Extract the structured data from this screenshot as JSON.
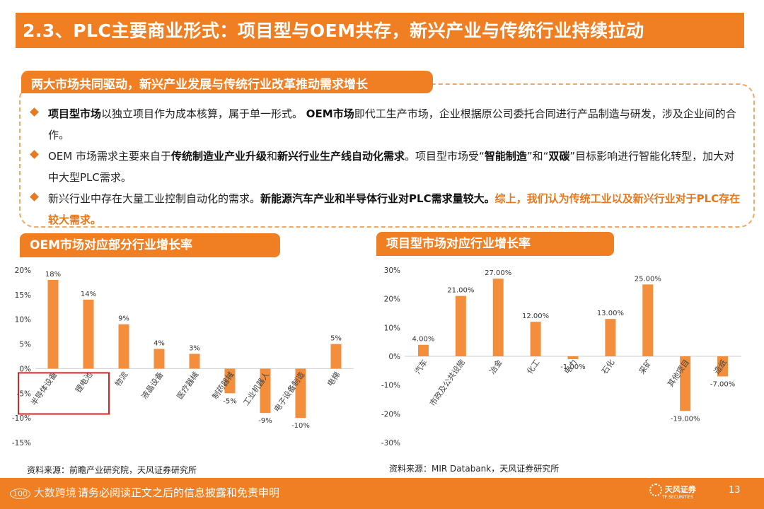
{
  "title": "2.3、PLC主要商业形式：项目型与OEM共存，新兴产业与传统行业持续拉动",
  "subtitle": "两大市场共同驱动，新兴产业发展与传统行业改革推动需求增长",
  "bullets": {
    "b1": {
      "s1": "项目型市场",
      "s2": "以独立项目作为成本核算，属于单一形式。 ",
      "s3": "OEM市场",
      "s4": "即代工生产市场，企业根据原公司委托合同进行产品制造与研发，涉及企业间的合作。"
    },
    "b2": {
      "s1": "OEM 市场需求主要来自于",
      "s2": "传统制造业产业升级",
      "s3": "和",
      "s4": "新兴行业生产线自动化需求",
      "s5": "。项目型市场受“",
      "s6": "智能制造",
      "s7": "”和“",
      "s8": "双碳",
      "s9": "”目标影响进行智能化转型，加大对中大型PLC需求。"
    },
    "b3": {
      "s1": "新兴行业中存在大量工业控制自动化的需求。",
      "s2": "新能源汽车产业和半导体行业对PLC需求量较大。",
      "s3": "综上，我们认为传统工业以及新兴行业对于PLC存在较大需求。"
    }
  },
  "left_chart_title": "OEM市场对应部分行业增长率",
  "right_chart_title": "项目型市场对应行业增长率",
  "left_source": "资料来源：前瞻产业研究院，天风证券研究所",
  "right_source": "资料来源：MIR Databank，天风证券研究所",
  "footer": {
    "disclaimer": "请务必阅读正文之后的信息披露和免责申明",
    "watermark": "大数跨境",
    "logo_text": "天风证券",
    "logo_sub": "TF SECURITIES",
    "page": "13"
  },
  "colors": {
    "accent": "#F07F23",
    "bar": "#F28E3C",
    "highlight_box": "#E0201F"
  },
  "chart_data": [
    {
      "type": "bar",
      "title": "OEM市场对应部分行业增长率",
      "categories": [
        "半导体设备",
        "锂电池",
        "物流",
        "液晶设备",
        "医疗器械",
        "制药器械",
        "工业机器人",
        "电子设备制造",
        "电梯"
      ],
      "values": [
        18,
        14,
        9,
        4,
        3,
        -5,
        -9,
        -10,
        5
      ],
      "data_labels": [
        "18%",
        "14%",
        "9%",
        "4%",
        "3%",
        "-5%",
        "-9%",
        "-10%",
        "5%"
      ],
      "ylim": [
        -15,
        20
      ],
      "yticks": [
        20,
        15,
        10,
        5,
        0,
        -5,
        -10,
        -15
      ],
      "ytick_labels": [
        "20%",
        "15%",
        "10%",
        "5%",
        "0%",
        "-5%",
        "-10%",
        "-15%"
      ],
      "highlighted_categories": [
        "半导体设备",
        "锂电池"
      ],
      "grid": false
    },
    {
      "type": "bar",
      "title": "项目型市场对应行业增长率",
      "categories": [
        "汽车",
        "市政及公共设施",
        "冶金",
        "化工",
        "电力",
        "石化",
        "采矿",
        "其他项目",
        "造纸"
      ],
      "values": [
        4,
        21,
        27,
        12,
        -1,
        13,
        25,
        -19,
        -7
      ],
      "data_labels": [
        "4.00%",
        "21.00%",
        "27.00%",
        "12.00%",
        "-1.00%",
        "13.00%",
        "25.00%",
        "-19.00%",
        "-7.00%"
      ],
      "ylim": [
        -30,
        30
      ],
      "yticks": [
        30,
        20,
        10,
        0,
        -10,
        -20,
        -30
      ],
      "ytick_labels": [
        "30%",
        "20%",
        "10%",
        "0%",
        "-10%",
        "-20%",
        "-30%"
      ],
      "grid": false
    }
  ]
}
